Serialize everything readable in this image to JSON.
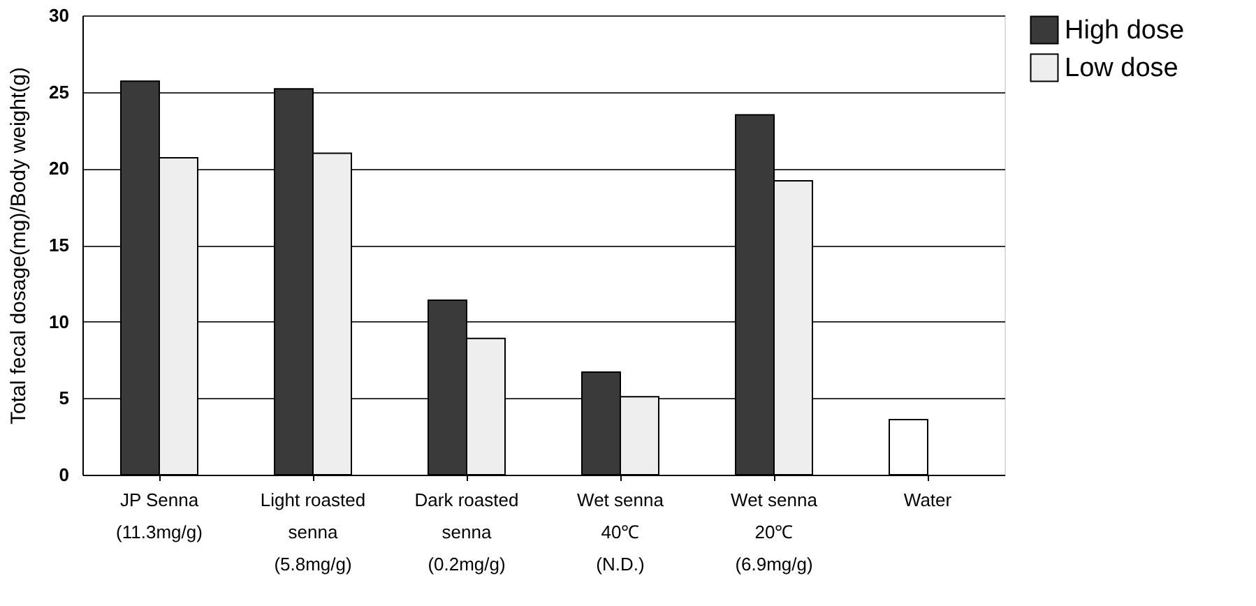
{
  "chart_data": {
    "type": "bar",
    "ylabel": "Total fecal dosage(mg)/Body  weight(g)",
    "categories": [
      "JP Senna\n\n(11.3mg/g)",
      "Light roasted\nsenna\n(5.8mg/g)",
      "Dark roasted\nsenna\n(0.2mg/g)",
      "Wet senna\n40℃\n(N.D.)",
      "Wet senna\n20℃\n(6.9mg/g)",
      "Water"
    ],
    "series": [
      {
        "name": "High dose",
        "color": "#3a3a3a",
        "colors": [
          "#3a3a3a",
          "#3a3a3a",
          "#3a3a3a",
          "#3a3a3a",
          "#3a3a3a",
          "#ffffff"
        ],
        "values": [
          25.7,
          25.2,
          11.4,
          6.7,
          23.5,
          3.6
        ]
      },
      {
        "name": "Low dose",
        "color": "#eeeeee",
        "values": [
          20.7,
          21.0,
          8.9,
          5.1,
          19.2,
          null
        ]
      }
    ],
    "ylim": [
      0,
      30
    ],
    "yticks": [
      0,
      5,
      10,
      15,
      20,
      25,
      30
    ],
    "grid": "y",
    "legend": "right"
  }
}
